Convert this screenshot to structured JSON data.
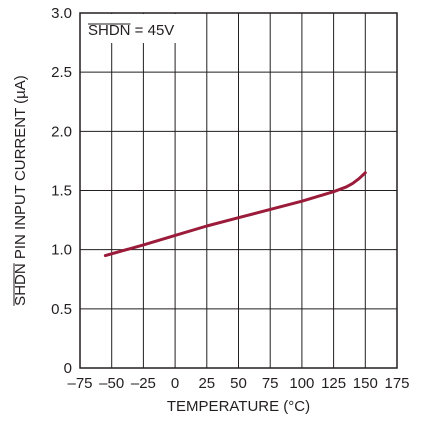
{
  "chart_data": {
    "type": "line",
    "title": "",
    "xlabel": "TEMPERATURE (°C)",
    "ylabel": {
      "overlined": "SHDN",
      "rest": " PIN INPUT CURRENT (µA)"
    },
    "annotation": {
      "overlined": "SHDN",
      "rest": " = 45V"
    },
    "xlim": [
      -75,
      175
    ],
    "ylim": [
      0,
      3.0
    ],
    "x_ticks": [
      -75,
      -50,
      -25,
      0,
      25,
      50,
      75,
      100,
      125,
      150,
      175
    ],
    "x_tick_labels": [
      "–75",
      "–50",
      "–25",
      "0",
      "25",
      "50",
      "75",
      "100",
      "125",
      "150",
      "175"
    ],
    "y_ticks": [
      0,
      0.5,
      1.0,
      1.5,
      2.0,
      2.5,
      3.0
    ],
    "y_tick_labels": [
      "0",
      "0.5",
      "1.0",
      "1.5",
      "2.0",
      "2.5",
      "3.0"
    ],
    "grid": true,
    "series": [
      {
        "color": "#9b1b3a",
        "x": [
          -55,
          -25,
          0,
          25,
          50,
          75,
          100,
          125,
          135,
          140,
          145,
          150
        ],
        "y": [
          0.95,
          1.04,
          1.12,
          1.2,
          1.27,
          1.34,
          1.41,
          1.49,
          1.53,
          1.56,
          1.6,
          1.65
        ]
      }
    ]
  }
}
